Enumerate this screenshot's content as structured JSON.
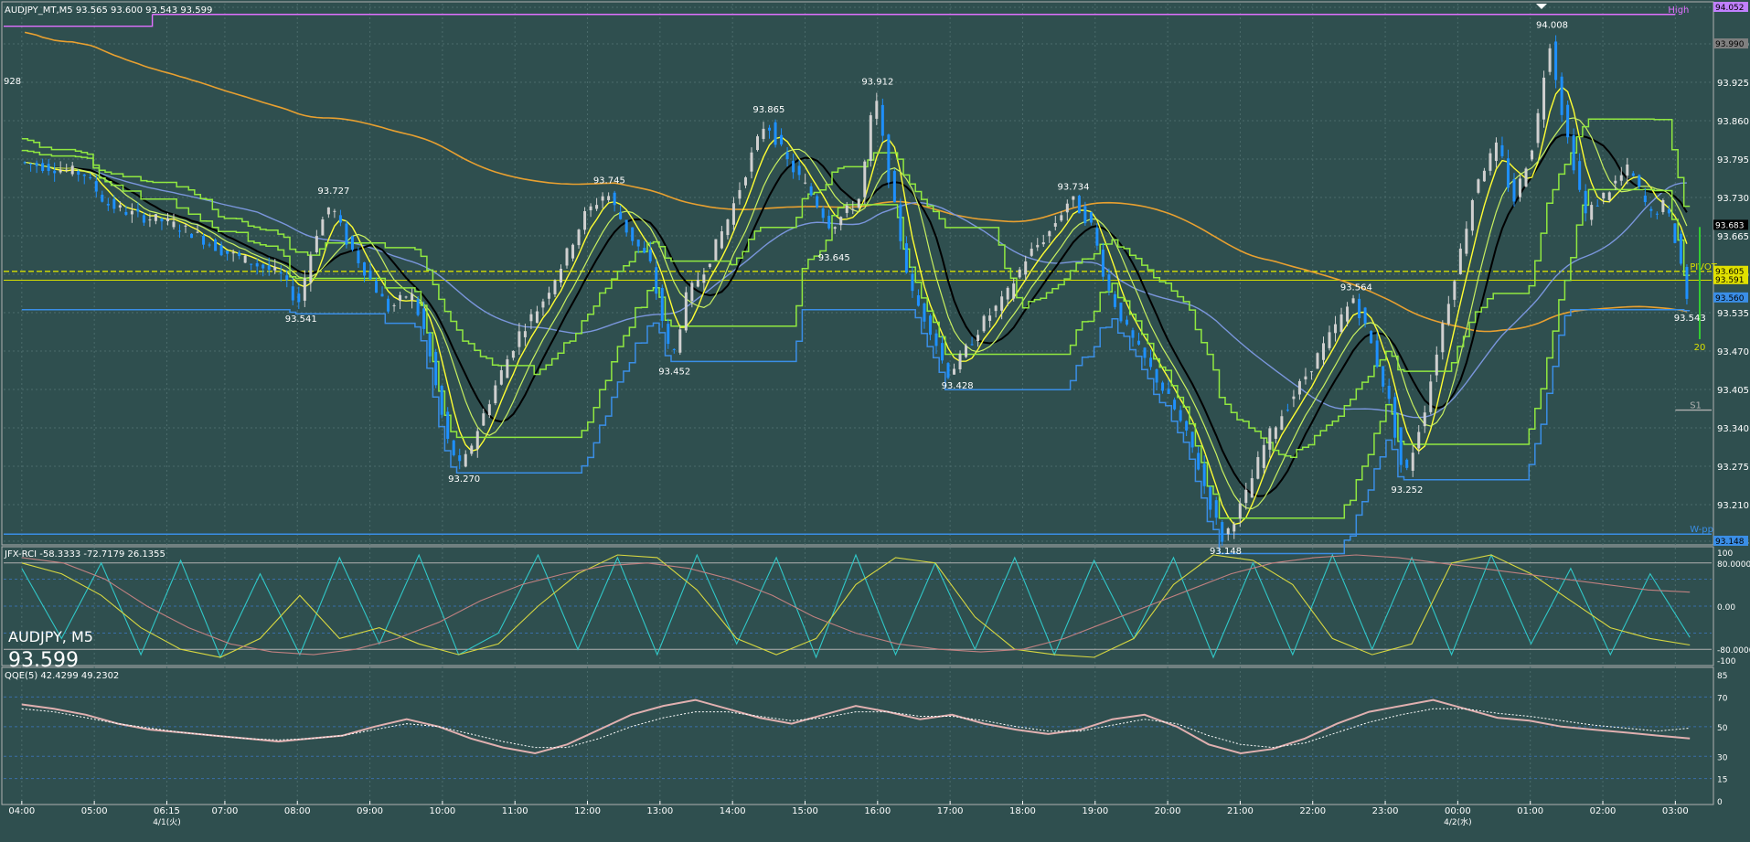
{
  "header": {
    "symbol_line": "AUDJPY_MT,M5  93.565 93.600 93.543 93.599"
  },
  "overlay": {
    "symbol": "AUDJPY, M5",
    "price": "93.599"
  },
  "colors": {
    "background": "#2f4f4f",
    "grid": "#4b6b6b",
    "bull": "#d0d0d0",
    "bear": "#1e90ff",
    "ma_black": "#000000",
    "ma_orange": "#e8a030",
    "ma_yellow": "#ffff33",
    "ma_blue": "#7a96dc",
    "band_green": "#90e840",
    "band_blue": "#3a8ee6",
    "high_line": "#e070ff",
    "pivot": "#d8e000",
    "rci_cyan": "#30c8c8",
    "rci_yellow": "#d8d840",
    "rci_pink": "#c08080",
    "qqe_line": "#e0b0b0",
    "qqe_dot": "#ffffff"
  },
  "chart_data": [
    {
      "type": "candlestick",
      "title": "AUDJPY_MT,M5  93.565 93.600 93.543 93.599",
      "ylim": [
        93.148,
        94.052
      ],
      "y_ticks": [
        "94.052",
        "93.990",
        "93.925",
        "93.860",
        "93.795",
        "93.730",
        "93.665",
        "93.600",
        "93.535",
        "93.470",
        "93.405",
        "93.340",
        "93.275",
        "93.210",
        "93.148"
      ],
      "x_ticks": [
        {
          "t": 0.0,
          "label": "04:00"
        },
        {
          "t": 1.0,
          "label": "05:00"
        },
        {
          "t": 2.0,
          "label": "06:15",
          "sub": "4/1(火)"
        },
        {
          "t": 2.8,
          "label": "07:00"
        },
        {
          "t": 3.8,
          "label": "08:00"
        },
        {
          "t": 4.8,
          "label": "09:00"
        },
        {
          "t": 5.8,
          "label": "10:00"
        },
        {
          "t": 6.8,
          "label": "11:00"
        },
        {
          "t": 7.8,
          "label": "12:00"
        },
        {
          "t": 8.8,
          "label": "13:00"
        },
        {
          "t": 9.8,
          "label": "14:00"
        },
        {
          "t": 10.8,
          "label": "15:00"
        },
        {
          "t": 11.8,
          "label": "16:00"
        },
        {
          "t": 12.8,
          "label": "17:00"
        },
        {
          "t": 13.8,
          "label": "18:00"
        },
        {
          "t": 14.8,
          "label": "19:00"
        },
        {
          "t": 15.8,
          "label": "20:00"
        },
        {
          "t": 16.8,
          "label": "21:00"
        },
        {
          "t": 17.8,
          "label": "22:00"
        },
        {
          "t": 18.8,
          "label": "23:00"
        },
        {
          "t": 19.8,
          "label": "00:00",
          "sub": "4/2(水)"
        },
        {
          "t": 20.8,
          "label": "01:00"
        },
        {
          "t": 21.8,
          "label": "02:00"
        },
        {
          "t": 22.8,
          "label": "03:00"
        }
      ],
      "price_path": [
        [
          0.0,
          93.79
        ],
        [
          0.5,
          93.78
        ],
        [
          0.9,
          93.77
        ],
        [
          1.2,
          93.72
        ],
        [
          1.6,
          93.7
        ],
        [
          2.0,
          93.69
        ],
        [
          2.4,
          93.67
        ],
        [
          2.8,
          93.64
        ],
        [
          3.2,
          93.62
        ],
        [
          3.6,
          93.6
        ],
        [
          3.85,
          93.55
        ],
        [
          4.1,
          93.67
        ],
        [
          4.3,
          93.72
        ],
        [
          4.5,
          93.66
        ],
        [
          4.8,
          93.6
        ],
        [
          5.1,
          93.54
        ],
        [
          5.4,
          93.57
        ],
        [
          5.6,
          93.5
        ],
        [
          5.9,
          93.32
        ],
        [
          6.1,
          93.27
        ],
        [
          6.4,
          93.36
        ],
        [
          6.6,
          93.42
        ],
        [
          6.9,
          93.5
        ],
        [
          7.2,
          93.55
        ],
        [
          7.5,
          93.62
        ],
        [
          7.8,
          93.7
        ],
        [
          8.1,
          93.74
        ],
        [
          8.4,
          93.67
        ],
        [
          8.7,
          93.62
        ],
        [
          9.0,
          93.45
        ],
        [
          9.2,
          93.56
        ],
        [
          9.5,
          93.62
        ],
        [
          9.8,
          93.7
        ],
        [
          10.1,
          93.8
        ],
        [
          10.3,
          93.86
        ],
        [
          10.6,
          93.79
        ],
        [
          10.9,
          93.74
        ],
        [
          11.2,
          93.68
        ],
        [
          11.6,
          93.73
        ],
        [
          11.8,
          93.91
        ],
        [
          12.0,
          93.76
        ],
        [
          12.3,
          93.57
        ],
        [
          12.6,
          93.5
        ],
        [
          12.8,
          93.43
        ],
        [
          13.0,
          93.46
        ],
        [
          13.3,
          93.52
        ],
        [
          13.6,
          93.56
        ],
        [
          13.9,
          93.63
        ],
        [
          14.2,
          93.67
        ],
        [
          14.5,
          93.73
        ],
        [
          14.8,
          93.68
        ],
        [
          15.0,
          93.58
        ],
        [
          15.3,
          93.5
        ],
        [
          15.6,
          93.44
        ],
        [
          15.9,
          93.38
        ],
        [
          16.2,
          93.3
        ],
        [
          16.4,
          93.22
        ],
        [
          16.6,
          93.15
        ],
        [
          16.9,
          93.22
        ],
        [
          17.2,
          93.32
        ],
        [
          17.5,
          93.38
        ],
        [
          17.8,
          93.44
        ],
        [
          18.1,
          93.5
        ],
        [
          18.4,
          93.56
        ],
        [
          18.6,
          93.5
        ],
        [
          18.9,
          93.38
        ],
        [
          19.1,
          93.25
        ],
        [
          19.4,
          93.38
        ],
        [
          19.6,
          93.5
        ],
        [
          19.9,
          93.65
        ],
        [
          20.1,
          93.76
        ],
        [
          20.4,
          93.82
        ],
        [
          20.6,
          93.72
        ],
        [
          20.9,
          93.83
        ],
        [
          21.1,
          94.0
        ],
        [
          21.3,
          93.86
        ],
        [
          21.6,
          93.7
        ],
        [
          21.9,
          93.74
        ],
        [
          22.2,
          93.78
        ],
        [
          22.5,
          93.7
        ],
        [
          22.7,
          93.72
        ],
        [
          22.9,
          93.63
        ],
        [
          23.0,
          93.56
        ]
      ],
      "labels": [
        {
          "t": 3.85,
          "v": 93.541,
          "text": "93.541",
          "pos": "below"
        },
        {
          "t": 4.3,
          "v": 93.727,
          "text": "93.727",
          "pos": "above"
        },
        {
          "t": 6.1,
          "v": 93.27,
          "text": "93.270",
          "pos": "below"
        },
        {
          "t": 8.1,
          "v": 93.745,
          "text": "93.745",
          "pos": "above"
        },
        {
          "t": 9.0,
          "v": 93.452,
          "text": "93.452",
          "pos": "below"
        },
        {
          "t": 10.3,
          "v": 93.865,
          "text": "93.865",
          "pos": "above"
        },
        {
          "t": 11.2,
          "v": 93.645,
          "text": "93.645",
          "pos": "below"
        },
        {
          "t": 11.8,
          "v": 93.912,
          "text": "93.912",
          "pos": "above"
        },
        {
          "t": 12.9,
          "v": 93.428,
          "text": "93.428",
          "pos": "below"
        },
        {
          "t": 14.5,
          "v": 93.734,
          "text": "93.734",
          "pos": "above"
        },
        {
          "t": 16.6,
          "v": 93.148,
          "text": "93.148",
          "pos": "below"
        },
        {
          "t": 18.4,
          "v": 93.564,
          "text": "93.564",
          "pos": "above"
        },
        {
          "t": 19.1,
          "v": 93.252,
          "text": "93.252",
          "pos": "below"
        },
        {
          "t": 21.1,
          "v": 94.008,
          "text": "94.008",
          "pos": "above"
        },
        {
          "t": 23.0,
          "v": 93.543,
          "text": "93.543",
          "pos": "below"
        },
        {
          "t": 0.0,
          "v": 93.928,
          "text": "928",
          "pos": "left"
        }
      ],
      "levels": [
        {
          "name": "High",
          "value": 94.04,
          "text": "High"
        },
        {
          "name": "PIVOT",
          "value": 93.605,
          "text": "PIVOT"
        },
        {
          "name": "S1",
          "value": 93.37,
          "text": "S1"
        },
        {
          "name": "W-pp",
          "value": 93.16,
          "text": "W-pp"
        }
      ],
      "price_tags": [
        "94.052",
        "93.990",
        "93.683",
        "93.605",
        "93.591",
        "93.560",
        "93.148"
      ],
      "vertical_marker_label": "20"
    },
    {
      "type": "line",
      "title": "JFX-RCI -58.3333 -72.7179 26.1355",
      "ylim": [
        -100,
        100
      ],
      "y_ticks": [
        "100",
        "80.0000",
        "0.00",
        "-80.0000",
        "-100"
      ],
      "series": [
        {
          "values": [
            70,
            -60,
            80,
            -90,
            85,
            -95,
            60,
            -90,
            90,
            -70,
            95,
            -90,
            -50,
            95,
            -80,
            90,
            -90,
            95,
            -70,
            90,
            -95,
            95,
            -90,
            80,
            -80,
            90,
            -90,
            85,
            -60,
            90,
            -95,
            80,
            -90,
            95,
            -80,
            90,
            -90,
            95,
            -70,
            70,
            -90,
            60,
            -58
          ]
        },
        {
          "values": [
            80,
            60,
            20,
            -40,
            -80,
            -95,
            -60,
            20,
            -60,
            -40,
            -70,
            -90,
            -70,
            0,
            60,
            95,
            90,
            30,
            -60,
            -90,
            -60,
            40,
            90,
            80,
            -20,
            -80,
            -90,
            -95,
            -60,
            40,
            95,
            85,
            40,
            -60,
            -90,
            -70,
            80,
            95,
            60,
            10,
            -40,
            -60,
            -72
          ]
        },
        {
          "values": [
            90,
            80,
            50,
            0,
            -40,
            -70,
            -85,
            -90,
            -80,
            -60,
            -30,
            10,
            40,
            60,
            75,
            80,
            70,
            50,
            20,
            -20,
            -50,
            -70,
            -80,
            -85,
            -80,
            -60,
            -30,
            0,
            30,
            60,
            80,
            90,
            95,
            90,
            80,
            70,
            60,
            50,
            40,
            30,
            26
          ]
        }
      ]
    },
    {
      "type": "line",
      "title": "QQE(5) 42.4299 49.2302",
      "ylim": [
        0,
        85
      ],
      "y_ticks": [
        "85",
        "70",
        "50",
        "30",
        "15",
        "0"
      ],
      "series": [
        {
          "values": [
            65,
            62,
            58,
            52,
            48,
            46,
            44,
            42,
            40,
            42,
            44,
            50,
            55,
            50,
            42,
            36,
            32,
            38,
            48,
            58,
            64,
            68,
            62,
            56,
            52,
            58,
            64,
            60,
            55,
            58,
            52,
            48,
            45,
            48,
            55,
            58,
            50,
            38,
            32,
            35,
            42,
            52,
            60,
            64,
            68,
            62,
            56,
            54,
            50,
            48,
            46,
            44,
            42
          ]
        },
        {
          "values": [
            62,
            60,
            56,
            52,
            49,
            46,
            44,
            42,
            41,
            42,
            44,
            48,
            52,
            50,
            45,
            40,
            36,
            36,
            42,
            50,
            56,
            60,
            60,
            57,
            54,
            56,
            60,
            60,
            57,
            57,
            54,
            50,
            47,
            47,
            51,
            55,
            52,
            44,
            38,
            36,
            39,
            46,
            53,
            58,
            62,
            62,
            59,
            57,
            54,
            51,
            49,
            47,
            49
          ]
        }
      ]
    }
  ]
}
